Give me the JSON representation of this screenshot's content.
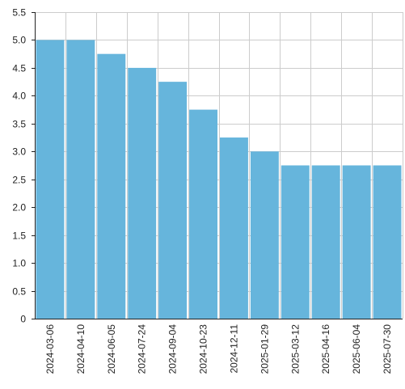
{
  "chart_data": {
    "type": "bar",
    "categories": [
      "2024-03-06",
      "2024-04-10",
      "2024-06-05",
      "2024-07-24",
      "2024-09-04",
      "2024-10-23",
      "2024-12-11",
      "2025-01-29",
      "2025-03-12",
      "2025-04-16",
      "2025-06-04",
      "2025-07-30"
    ],
    "values": [
      5.0,
      5.0,
      4.75,
      4.5,
      4.25,
      3.75,
      3.25,
      3.0,
      2.75,
      2.75,
      2.75,
      2.75
    ],
    "title": "",
    "xlabel": "",
    "ylabel": "",
    "ylim": [
      0,
      5.5
    ],
    "yticks": [
      "0",
      "0.5",
      "1.0",
      "1.5",
      "2.0",
      "2.5",
      "3.0",
      "3.5",
      "4.0",
      "4.5",
      "5.0",
      "5.5"
    ],
    "grid": true,
    "legend": "none",
    "bar_color": "#66b5dc",
    "grid_color": "#cccccc",
    "axis_color": "#222222"
  }
}
